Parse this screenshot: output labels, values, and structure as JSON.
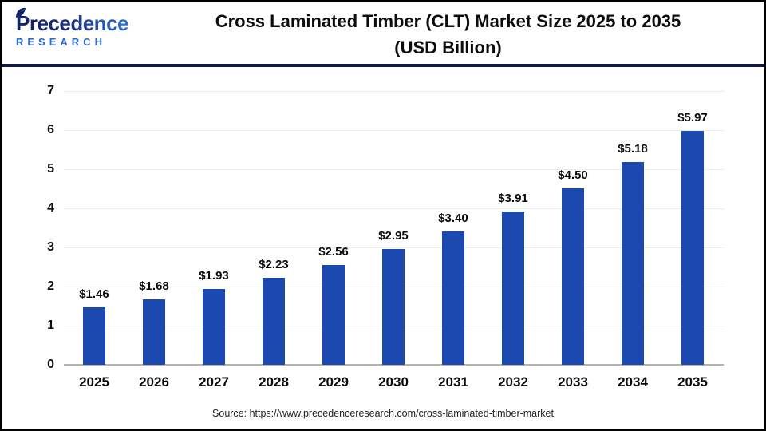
{
  "header": {
    "logo_brand": "Precedence",
    "logo_sub": "RESEARCH",
    "title_line1": "Cross Laminated Timber (CLT) Market Size 2025 to 2035",
    "title_line2": "(USD Billion)"
  },
  "chart_data": {
    "type": "bar",
    "title": "Cross Laminated Timber (CLT) Market Size 2025 to 2035 (USD Billion)",
    "categories": [
      "2025",
      "2026",
      "2027",
      "2028",
      "2029",
      "2030",
      "2031",
      "2032",
      "2033",
      "2034",
      "2035"
    ],
    "values": [
      1.46,
      1.68,
      1.93,
      2.23,
      2.56,
      2.95,
      3.4,
      3.91,
      4.5,
      5.18,
      5.97
    ],
    "value_labels": [
      "$1.46",
      "$1.68",
      "$1.93",
      "$2.23",
      "$2.56",
      "$2.95",
      "$3.40",
      "$3.91",
      "$4.50",
      "$5.18",
      "$5.97"
    ],
    "xlabel": "",
    "ylabel": "",
    "ylim": [
      0,
      7
    ],
    "yticks": [
      0,
      1,
      2,
      3,
      4,
      5,
      6,
      7
    ],
    "grid": true,
    "legend": "none",
    "bar_color": "#1b49b0"
  },
  "footer": {
    "source": "Source: https://www.precedenceresearch.com/cross-laminated-timber-market"
  },
  "colors": {
    "bar": "#1b49b0",
    "divider_navy": "#101a40",
    "gridline": "#ececec",
    "baseline": "#b3b3b3",
    "logo_navy": "#141f5e",
    "logo_blue": "#2b6bd6",
    "title_text": "#0c0c0c"
  }
}
